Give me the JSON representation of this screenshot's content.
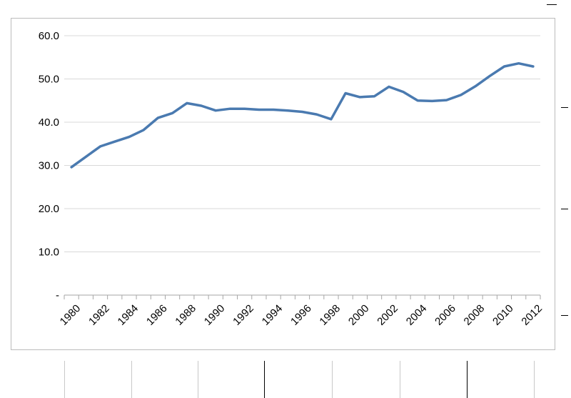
{
  "chart_data": {
    "type": "line",
    "title": "",
    "xlabel": "",
    "ylabel": "",
    "x": [
      "1980",
      "1981",
      "1982",
      "1983",
      "1984",
      "1985",
      "1986",
      "1987",
      "1988",
      "1989",
      "1990",
      "1991",
      "1992",
      "1993",
      "1994",
      "1995",
      "1996",
      "1997",
      "1998",
      "1999",
      "2000",
      "2001",
      "2002",
      "2003",
      "2004",
      "2005",
      "2006",
      "2007",
      "2008",
      "2009",
      "2010",
      "2011",
      "2012"
    ],
    "x_tick_labels": [
      "1980",
      "1982",
      "1984",
      "1986",
      "1988",
      "1990",
      "1992",
      "1994",
      "1996",
      "1998",
      "2000",
      "2002",
      "2004",
      "2006",
      "2008",
      "2010",
      "2012"
    ],
    "series": [
      {
        "color": "#4a7ab0",
        "values": [
          29.6,
          32.0,
          34.4,
          35.5,
          36.6,
          38.2,
          41.0,
          42.1,
          44.4,
          43.8,
          42.7,
          43.1,
          43.1,
          42.9,
          42.9,
          42.7,
          42.4,
          41.8,
          40.7,
          46.7,
          45.8,
          46.0,
          48.2,
          47.0,
          45.0,
          44.9,
          45.1,
          46.3,
          48.3,
          50.7,
          52.9,
          53.6,
          52.9
        ]
      }
    ],
    "ylim": [
      0,
      60
    ],
    "y_ticks": [
      {
        "value": 0,
        "label": "-"
      },
      {
        "value": 10,
        "label": "10.0"
      },
      {
        "value": 20,
        "label": "20.0"
      },
      {
        "value": 30,
        "label": "30.0"
      },
      {
        "value": 40,
        "label": "40.0"
      },
      {
        "value": 50,
        "label": "50.0"
      },
      {
        "value": 60,
        "label": "60.0"
      }
    ],
    "grid": true,
    "legend": "none"
  },
  "colors": {
    "series": "#4a7ab0",
    "grid": "#d9d9d9",
    "frame": "#bcbcbc",
    "text": "#000000"
  }
}
